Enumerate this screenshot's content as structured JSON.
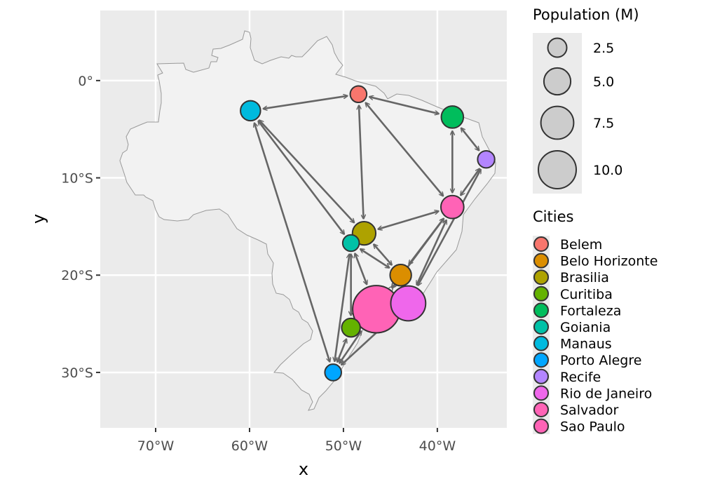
{
  "chart_data": {
    "type": "scatter",
    "subtype": "map-network",
    "title": "",
    "xlabel": "x",
    "ylabel": "y",
    "xlim": [
      -75.9,
      -32.6
    ],
    "ylim": [
      -35.7,
      7.2
    ],
    "grid": true,
    "x_ticks": [
      {
        "value": -70,
        "label": "70°W"
      },
      {
        "value": -60,
        "label": "60°W"
      },
      {
        "value": -50,
        "label": "50°W"
      },
      {
        "value": -40,
        "label": "40°W"
      }
    ],
    "y_ticks": [
      {
        "value": 0,
        "label": "0°"
      },
      {
        "value": -10,
        "label": "10°S"
      },
      {
        "value": -20,
        "label": "20°S"
      },
      {
        "value": -30,
        "label": "30°S"
      }
    ],
    "size_legend": {
      "title": "Population (M)",
      "position": "top-right",
      "values": [
        2.5,
        5.0,
        7.5,
        10.0
      ],
      "labels": [
        "2.5",
        "5.0",
        "7.5",
        "10.0"
      ]
    },
    "color_legend": {
      "title": "Cities",
      "position": "right"
    },
    "cities": [
      {
        "name": "Belem",
        "lon": -48.4,
        "lat": -1.4,
        "pop": 1.5,
        "color": "#F8766D"
      },
      {
        "name": "Belo Horizonte",
        "lon": -43.9,
        "lat": -20.0,
        "pop": 2.5,
        "color": "#DB8E00"
      },
      {
        "name": "Brasilia",
        "lon": -47.8,
        "lat": -15.7,
        "pop": 3.0,
        "color": "#AEA200"
      },
      {
        "name": "Curitiba",
        "lon": -49.2,
        "lat": -25.4,
        "pop": 1.9,
        "color": "#64B200"
      },
      {
        "name": "Fortaleza",
        "lon": -38.4,
        "lat": -3.75,
        "pop": 2.7,
        "color": "#00BD5C"
      },
      {
        "name": "Goiania",
        "lon": -49.2,
        "lat": -16.7,
        "pop": 1.5,
        "color": "#00C1A7"
      },
      {
        "name": "Manaus",
        "lon": -59.9,
        "lat": -3.1,
        "pop": 2.2,
        "color": "#00BADE"
      },
      {
        "name": "Porto Alegre",
        "lon": -51.1,
        "lat": -30.0,
        "pop": 1.5,
        "color": "#00A6FF"
      },
      {
        "name": "Recife",
        "lon": -34.8,
        "lat": -8.1,
        "pop": 1.6,
        "color": "#B385FF"
      },
      {
        "name": "Rio de Janeiro",
        "lon": -43.1,
        "lat": -22.9,
        "pop": 6.7,
        "color": "#EF67EB"
      },
      {
        "name": "Salvador",
        "lon": -38.4,
        "lat": -13.0,
        "pop": 2.9,
        "color": "#FF63B6"
      },
      {
        "name": "Sao Paulo",
        "lon": -46.5,
        "lat": -23.5,
        "pop": 12.3,
        "color": "#FF63B6"
      }
    ],
    "edges": [
      [
        "Manaus",
        "Belem"
      ],
      [
        "Belem",
        "Fortaleza"
      ],
      [
        "Belem",
        "Brasilia"
      ],
      [
        "Belem",
        "Salvador"
      ],
      [
        "Fortaleza",
        "Recife"
      ],
      [
        "Fortaleza",
        "Salvador"
      ],
      [
        "Recife",
        "Salvador"
      ],
      [
        "Recife",
        "Rio de Janeiro"
      ],
      [
        "Manaus",
        "Brasilia"
      ],
      [
        "Manaus",
        "Goiania"
      ],
      [
        "Manaus",
        "Porto Alegre"
      ],
      [
        "Salvador",
        "Brasilia"
      ],
      [
        "Salvador",
        "Belo Horizonte"
      ],
      [
        "Salvador",
        "Rio de Janeiro"
      ],
      [
        "Salvador",
        "Sao Paulo"
      ],
      [
        "Brasilia",
        "Belo Horizonte"
      ],
      [
        "Goiania",
        "Belo Horizonte"
      ],
      [
        "Goiania",
        "Sao Paulo"
      ],
      [
        "Goiania",
        "Curitiba"
      ],
      [
        "Goiania",
        "Porto Alegre"
      ],
      [
        "Belo Horizonte",
        "Sao Paulo"
      ],
      [
        "Curitiba",
        "Porto Alegre"
      ],
      [
        "Sao Paulo",
        "Porto Alegre"
      ],
      [
        "Rio de Janeiro",
        "Porto Alegre"
      ]
    ]
  }
}
